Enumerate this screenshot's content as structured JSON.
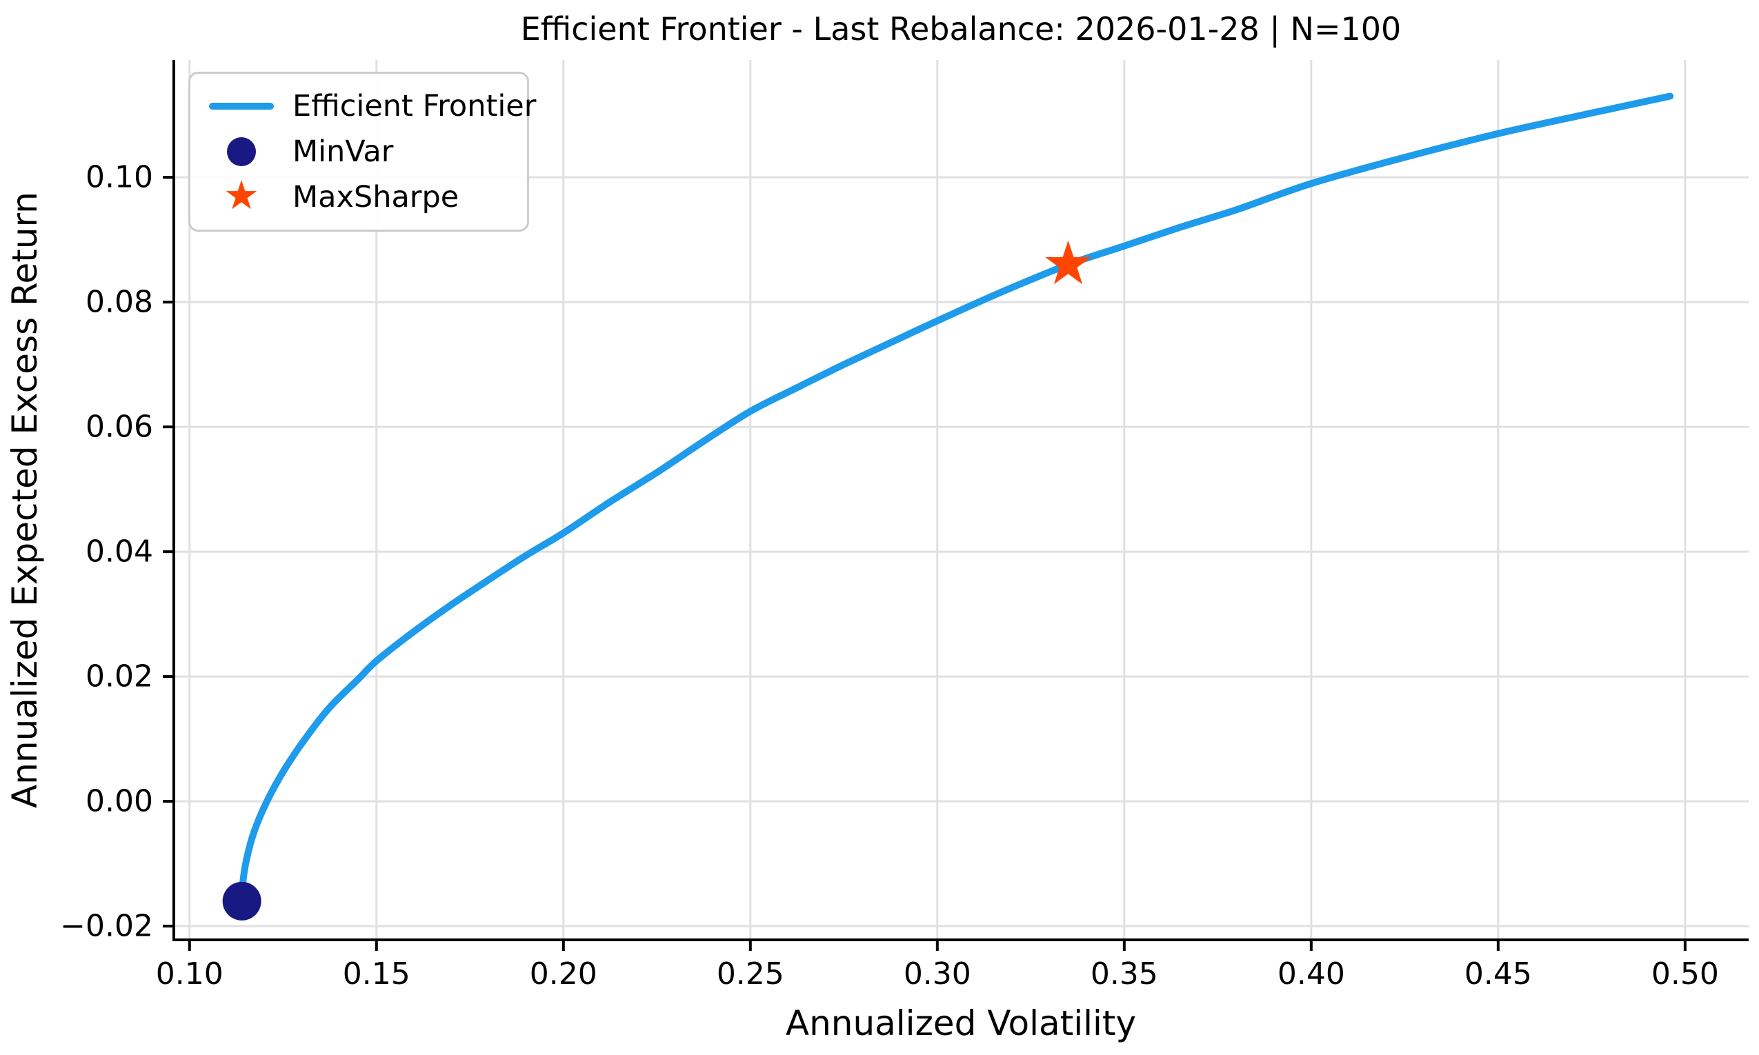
{
  "figure": {
    "title": "Efficient Frontier - Last Rebalance: 2026-01-28 | N=100",
    "xlabel": "Annualized Volatility",
    "ylabel": "Annualized Expected Excess Return"
  },
  "legend": {
    "position": "upper left",
    "items": [
      {
        "label": "Efficient Frontier",
        "marker": "line"
      },
      {
        "label": "MinVar",
        "marker": "circle"
      },
      {
        "label": "MaxSharpe",
        "marker": "star"
      }
    ]
  },
  "colors": {
    "frontier": "#1E9BEB",
    "minvar": "#191983",
    "maxsharpe": "#FF4500",
    "grid": "#E0E0E0",
    "axis": "#000000",
    "legend_border": "#CCCCCC"
  },
  "chart_data": {
    "type": "line",
    "title": "Efficient Frontier - Last Rebalance: 2026-01-28 | N=100",
    "xlabel": "Annualized Volatility",
    "ylabel": "Annualized Expected Excess Return",
    "xlim": [
      0.0958,
      0.517
    ],
    "ylim": [
      -0.0222,
      0.1188
    ],
    "grid": true,
    "legend_position": "upper left",
    "x_ticks": [
      0.1,
      0.15,
      0.2,
      0.25,
      0.3,
      0.35,
      0.4,
      0.45,
      0.5
    ],
    "x_tick_labels": [
      "0.10",
      "0.15",
      "0.20",
      "0.25",
      "0.30",
      "0.35",
      "0.40",
      "0.45",
      "0.50"
    ],
    "y_ticks": [
      -0.02,
      0.0,
      0.02,
      0.04,
      0.06,
      0.08,
      0.1
    ],
    "y_tick_labels": [
      "−0.02",
      "0.00",
      "0.02",
      "0.04",
      "0.06",
      "0.08",
      "0.10"
    ],
    "series": [
      {
        "name": "Efficient Frontier",
        "type": "line",
        "color": "#1E9BEB",
        "points": [
          [
            0.114,
            -0.016
          ],
          [
            0.1141,
            -0.014
          ],
          [
            0.115,
            -0.01
          ],
          [
            0.1172,
            -0.005
          ],
          [
            0.1207,
            0.0
          ],
          [
            0.1253,
            0.005
          ],
          [
            0.1309,
            0.01
          ],
          [
            0.1374,
            0.015
          ],
          [
            0.145,
            0.0195
          ],
          [
            0.15,
            0.0225
          ],
          [
            0.16,
            0.0272
          ],
          [
            0.17,
            0.0315
          ],
          [
            0.18,
            0.0355
          ],
          [
            0.19,
            0.0394
          ],
          [
            0.2,
            0.043
          ],
          [
            0.2125,
            0.048
          ],
          [
            0.225,
            0.0527
          ],
          [
            0.2375,
            0.0577
          ],
          [
            0.25,
            0.0625
          ],
          [
            0.2625,
            0.0663
          ],
          [
            0.275,
            0.07
          ],
          [
            0.2875,
            0.0735
          ],
          [
            0.3,
            0.077
          ],
          [
            0.3175,
            0.0817
          ],
          [
            0.335,
            0.086
          ],
          [
            0.35,
            0.089
          ],
          [
            0.365,
            0.092
          ],
          [
            0.38,
            0.0948
          ],
          [
            0.4,
            0.099
          ],
          [
            0.425,
            0.1032
          ],
          [
            0.45,
            0.107
          ],
          [
            0.475,
            0.1103
          ],
          [
            0.496,
            0.113
          ]
        ]
      },
      {
        "name": "MinVar",
        "type": "scatter",
        "marker": "circle",
        "color": "#191983",
        "points": [
          [
            0.114,
            -0.016
          ]
        ]
      },
      {
        "name": "MaxSharpe",
        "type": "scatter",
        "marker": "star",
        "color": "#FF4500",
        "points": [
          [
            0.335,
            0.086
          ]
        ]
      }
    ]
  }
}
